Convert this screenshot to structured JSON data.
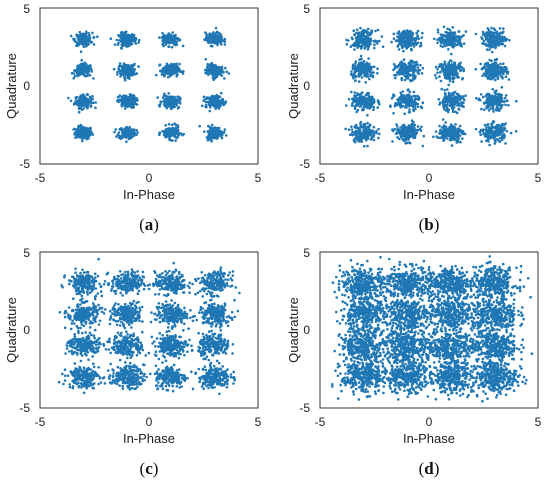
{
  "colors": {
    "points": "#1f77b4",
    "axis": "#333333"
  },
  "chart_data": [
    {
      "type": "scatter",
      "panel": "(a)",
      "xlabel": "In-Phase",
      "ylabel": "Quadrature",
      "xlim": [
        -5,
        5
      ],
      "ylim": [
        -5,
        5
      ],
      "xticks": [
        -5,
        0,
        5
      ],
      "yticks": [
        -5,
        0,
        5
      ],
      "grid": false,
      "constellation_centers": [
        -3,
        -1,
        1,
        3
      ],
      "cluster_spread_std": 0.2,
      "points_per_cluster": 150
    },
    {
      "type": "scatter",
      "panel": "(b)",
      "xlabel": "In-Phase",
      "ylabel": "Quadrature",
      "xlim": [
        -5,
        5
      ],
      "ylim": [
        -5,
        5
      ],
      "xticks": [
        -5,
        0,
        5
      ],
      "yticks": [
        -5,
        0,
        5
      ],
      "grid": false,
      "constellation_centers": [
        -3,
        -1,
        1,
        3
      ],
      "cluster_spread_std": 0.28,
      "points_per_cluster": 180
    },
    {
      "type": "scatter",
      "panel": "(c)",
      "xlabel": "In-Phase",
      "ylabel": "Quadrature",
      "xlim": [
        -5,
        5
      ],
      "ylim": [
        -5,
        5
      ],
      "xticks": [
        -5,
        0,
        5
      ],
      "yticks": [
        -5,
        0,
        5
      ],
      "grid": false,
      "constellation_centers": [
        -3,
        -1,
        1,
        3
      ],
      "cluster_spread_std": 0.36,
      "points_per_cluster": 200
    },
    {
      "type": "scatter",
      "panel": "(d)",
      "xlabel": "In-Phase",
      "ylabel": "Quadrature",
      "xlim": [
        -5,
        5
      ],
      "ylim": [
        -5,
        5
      ],
      "xticks": [
        -5,
        0,
        5
      ],
      "yticks": [
        -5,
        0,
        5
      ],
      "grid": false,
      "constellation_centers": [
        -3,
        -1,
        1,
        3
      ],
      "cluster_spread_std": 0.52,
      "points_per_cluster": 320
    }
  ]
}
